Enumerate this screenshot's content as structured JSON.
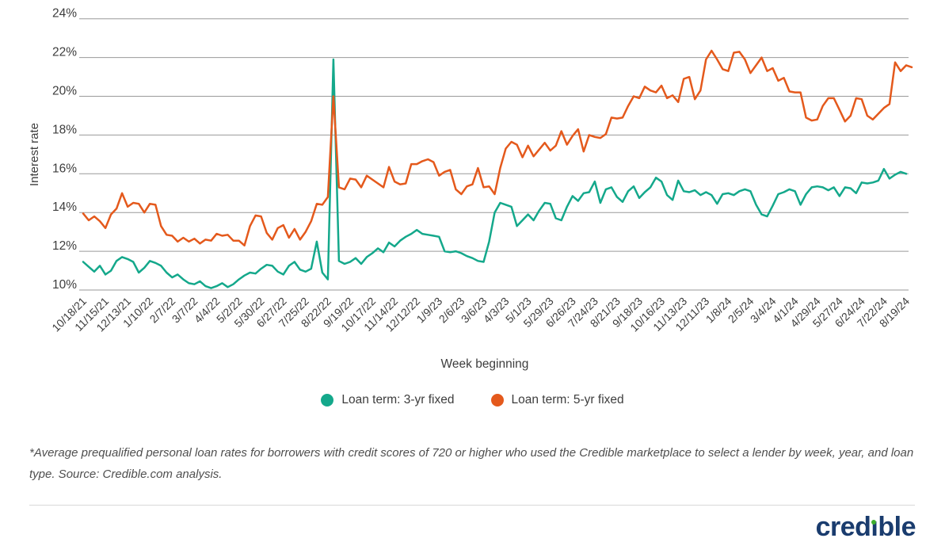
{
  "chart_data": {
    "type": "line",
    "xlabel": "Week beginning",
    "ylabel": "Interest rate",
    "ylim": [
      10,
      24
    ],
    "ytick_step": 2,
    "grid": true,
    "legend_position": "bottom",
    "ytick_labels": [
      "24%",
      "22%",
      "20%",
      "18%",
      "16%",
      "14%",
      "12%",
      "10%"
    ],
    "points_per_tick": 4,
    "x_tick_labels": [
      "10/18/21",
      "11/15/21",
      "12/13/21",
      "1/10/22",
      "2/7/22",
      "3/7/22",
      "4/4/22",
      "5/2/22",
      "5/30/22",
      "6/27/22",
      "7/25/22",
      "8/22/22",
      "9/19/22",
      "10/17/22",
      "11/14/22",
      "12/12/22",
      "1/9/23",
      "2/6/23",
      "3/6/23",
      "4/3/23",
      "5/1/23",
      "5/29/23",
      "6/26/23",
      "7/24/23",
      "8/21/23",
      "9/18/23",
      "10/16/23",
      "11/13/23",
      "12/11/23",
      "1/8/24",
      "2/5/24",
      "3/4/24",
      "4/1/24",
      "4/29/24",
      "5/27/24",
      "6/24/24",
      "7/22/24",
      "8/19/24"
    ],
    "series": [
      {
        "name": "Loan term: 3-yr fixed",
        "color": "#14A88B",
        "values": [
          11.45,
          11.2,
          10.95,
          11.25,
          10.8,
          11.0,
          11.5,
          11.7,
          11.6,
          11.45,
          10.9,
          11.15,
          11.5,
          11.4,
          11.25,
          10.9,
          10.65,
          10.8,
          10.55,
          10.35,
          10.3,
          10.45,
          10.2,
          10.1,
          10.2,
          10.35,
          10.15,
          10.3,
          10.55,
          10.75,
          10.9,
          10.85,
          11.1,
          11.3,
          11.25,
          10.95,
          10.8,
          11.25,
          11.45,
          11.05,
          10.95,
          11.1,
          12.5,
          10.9,
          10.55,
          21.9,
          11.5,
          11.35,
          11.45,
          11.65,
          11.35,
          11.7,
          11.9,
          12.15,
          11.95,
          12.45,
          12.25,
          12.55,
          12.75,
          12.9,
          13.1,
          12.9,
          12.85,
          12.8,
          12.75,
          12.0,
          11.95,
          12.0,
          11.9,
          11.75,
          11.65,
          11.5,
          11.45,
          12.5,
          14.0,
          14.5,
          14.4,
          14.3,
          13.3,
          13.6,
          13.9,
          13.6,
          14.1,
          14.5,
          14.45,
          13.7,
          13.6,
          14.3,
          14.85,
          14.6,
          15.0,
          15.05,
          15.6,
          14.5,
          15.2,
          15.3,
          14.8,
          14.55,
          15.1,
          15.35,
          14.75,
          15.05,
          15.3,
          15.8,
          15.6,
          14.9,
          14.65,
          15.65,
          15.1,
          15.05,
          15.15,
          14.9,
          15.05,
          14.9,
          14.45,
          14.95,
          15.0,
          14.9,
          15.1,
          15.2,
          15.1,
          14.4,
          13.9,
          13.8,
          14.35,
          14.95,
          15.05,
          15.2,
          15.1,
          14.4,
          14.95,
          15.3,
          15.35,
          15.3,
          15.15,
          15.3,
          14.85,
          15.3,
          15.25,
          15.0,
          15.55,
          15.5,
          15.55,
          15.65,
          16.25,
          15.75,
          15.95,
          16.1,
          16.0
        ]
      },
      {
        "name": "Loan term: 5-yr fixed",
        "color": "#E4591C",
        "values": [
          13.95,
          13.6,
          13.8,
          13.55,
          13.2,
          13.9,
          14.2,
          15.0,
          14.3,
          14.5,
          14.45,
          14.0,
          14.45,
          14.4,
          13.3,
          12.85,
          12.8,
          12.5,
          12.7,
          12.5,
          12.65,
          12.4,
          12.6,
          12.55,
          12.9,
          12.8,
          12.85,
          12.55,
          12.55,
          12.3,
          13.3,
          13.85,
          13.8,
          12.95,
          12.6,
          13.2,
          13.35,
          12.7,
          13.15,
          12.6,
          13.0,
          13.55,
          14.45,
          14.4,
          14.8,
          20.0,
          15.3,
          15.2,
          15.75,
          15.7,
          15.3,
          15.9,
          15.7,
          15.5,
          15.3,
          16.35,
          15.6,
          15.45,
          15.5,
          16.5,
          16.5,
          16.65,
          16.75,
          16.6,
          15.9,
          16.1,
          16.2,
          15.2,
          14.95,
          15.35,
          15.45,
          16.3,
          15.3,
          15.35,
          14.95,
          16.3,
          17.3,
          17.65,
          17.5,
          16.85,
          17.45,
          16.9,
          17.25,
          17.6,
          17.2,
          17.45,
          18.2,
          17.5,
          17.95,
          18.3,
          17.15,
          18.0,
          17.9,
          17.85,
          18.05,
          18.9,
          18.85,
          18.9,
          19.5,
          20.0,
          19.9,
          20.5,
          20.3,
          20.2,
          20.55,
          19.9,
          20.05,
          19.7,
          20.9,
          21.0,
          19.85,
          20.3,
          21.9,
          22.35,
          21.9,
          21.4,
          21.3,
          22.25,
          22.3,
          21.9,
          21.2,
          21.6,
          22.0,
          21.3,
          21.45,
          20.8,
          20.95,
          20.25,
          20.2,
          20.2,
          18.9,
          18.75,
          18.8,
          19.5,
          19.9,
          19.9,
          19.3,
          18.7,
          19.0,
          19.9,
          19.85,
          19.0,
          18.8,
          19.1,
          19.4,
          19.6,
          21.75,
          21.3,
          21.6,
          21.5
        ]
      }
    ]
  },
  "axis": {
    "y_title": "Interest rate",
    "x_title": "Week beginning"
  },
  "legend": {
    "items": [
      {
        "label": "Loan term: 3-yr fixed",
        "color": "#14A88B"
      },
      {
        "label": "Loan term: 5-yr fixed",
        "color": "#E4591C"
      }
    ]
  },
  "footnote": {
    "text": "*Average prequalified personal loan rates for borrowers with credit scores of 720 or higher who used the Credible marketplace to select a lender by week, year, and loan type. Source: Credible.com analysis."
  },
  "logo": {
    "pre": "cred",
    "i_char": "ı",
    "post": "ble"
  },
  "colors": {
    "series_3yr": "#14A88B",
    "series_5yr": "#E4591C",
    "gridline": "#9A9A9A",
    "axis_text": "#3D3D3D",
    "footnote_text": "#4F4F4F",
    "logo_navy": "#1A3C6E",
    "logo_green": "#3FAE2C"
  }
}
